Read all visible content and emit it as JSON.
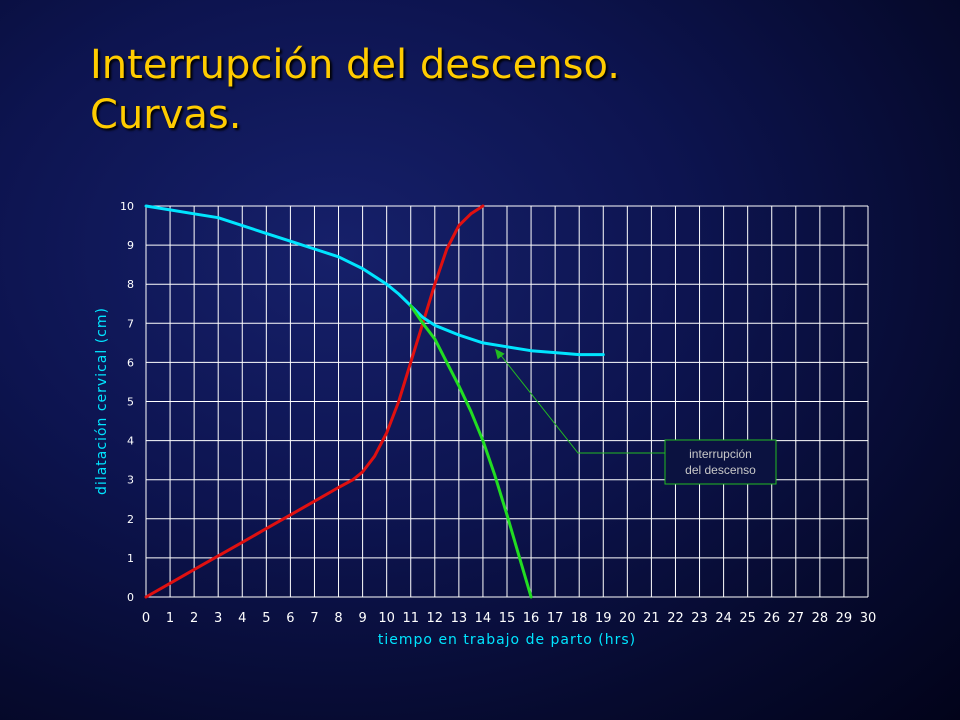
{
  "slide": {
    "title_line1": "Interrupción del descenso.",
    "title_line2": "Curvas."
  },
  "colors": {
    "title": "#ffcc00",
    "grid": "#ffffff",
    "red_curve": "#e01010",
    "cyan_curve": "#00e5ff",
    "green_curve": "#22dd22",
    "annotation_border": "#22bb22"
  },
  "chart_data": {
    "type": "line",
    "xlabel": "tiempo en trabajo de parto (hrs)",
    "ylabel": "dilatación cervical (cm)",
    "xlim": [
      0,
      30
    ],
    "ylim": [
      0,
      10
    ],
    "x_ticks": [
      0,
      1,
      2,
      3,
      4,
      5,
      6,
      7,
      8,
      9,
      10,
      11,
      12,
      13,
      14,
      15,
      16,
      17,
      18,
      19,
      20,
      21,
      22,
      23,
      24,
      25,
      26,
      27,
      28,
      29,
      30
    ],
    "y_ticks": [
      0,
      1,
      2,
      3,
      4,
      5,
      6,
      7,
      8,
      9,
      10
    ],
    "grid": true,
    "series": [
      {
        "color": "#e01010",
        "points": [
          [
            0,
            0
          ],
          [
            1,
            0.35
          ],
          [
            2,
            0.7
          ],
          [
            3,
            1.05
          ],
          [
            4,
            1.4
          ],
          [
            5,
            1.75
          ],
          [
            6,
            2.1
          ],
          [
            7,
            2.45
          ],
          [
            8,
            2.8
          ],
          [
            8.6,
            3.0
          ],
          [
            9,
            3.2
          ],
          [
            9.5,
            3.6
          ],
          [
            10,
            4.2
          ],
          [
            10.5,
            5.0
          ],
          [
            11,
            6.0
          ],
          [
            11.5,
            7.0
          ],
          [
            12,
            8.0
          ],
          [
            12.5,
            8.9
          ],
          [
            13,
            9.5
          ],
          [
            13.5,
            9.8
          ],
          [
            14,
            10
          ]
        ]
      },
      {
        "color": "#00e5ff",
        "points": [
          [
            0,
            10
          ],
          [
            1,
            9.9
          ],
          [
            2,
            9.8
          ],
          [
            3,
            9.7
          ],
          [
            4,
            9.5
          ],
          [
            5,
            9.3
          ],
          [
            6,
            9.1
          ],
          [
            7,
            8.9
          ],
          [
            8,
            8.7
          ],
          [
            9,
            8.4
          ],
          [
            10,
            8.0
          ],
          [
            10.5,
            7.75
          ],
          [
            11,
            7.45
          ],
          [
            11.5,
            7.15
          ],
          [
            12,
            6.95
          ],
          [
            13,
            6.7
          ],
          [
            14,
            6.5
          ],
          [
            15,
            6.4
          ],
          [
            16,
            6.3
          ],
          [
            17,
            6.25
          ],
          [
            18,
            6.2
          ],
          [
            19,
            6.2
          ]
        ]
      },
      {
        "color": "#22dd22",
        "points": [
          [
            11,
            7.45
          ],
          [
            11.5,
            7.0
          ],
          [
            12,
            6.6
          ],
          [
            12.5,
            6.0
          ],
          [
            13,
            5.4
          ],
          [
            13.5,
            4.75
          ],
          [
            14,
            4.0
          ],
          [
            14.5,
            3.1
          ],
          [
            15,
            2.1
          ],
          [
            15.5,
            1.05
          ],
          [
            16,
            0
          ]
        ]
      }
    ],
    "annotation": {
      "text_line1": "interrupción",
      "text_line2": "del descenso",
      "arrow_target": [
        14.5,
        6.35
      ]
    }
  }
}
